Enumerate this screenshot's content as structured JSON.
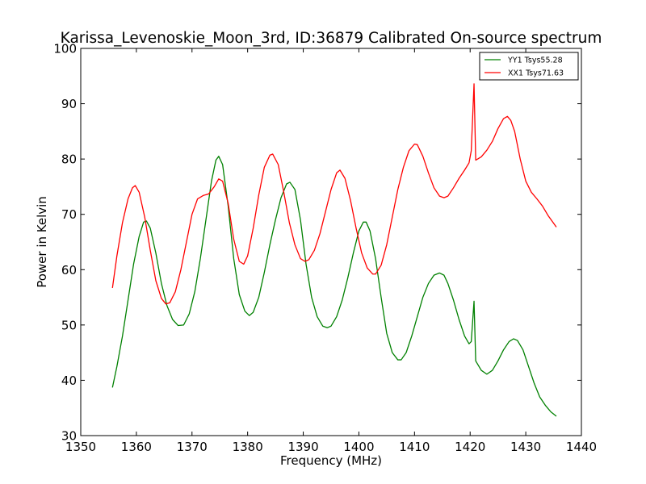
{
  "chart_data": {
    "type": "line",
    "title": "Karissa_Levenoskie_Moon_3rd, ID:36879 Calibrated On-source spectrum",
    "xlabel": "Frequency (MHz)",
    "ylabel": "Power in Kelvin",
    "xlim": [
      1350,
      1440
    ],
    "ylim": [
      30,
      100
    ],
    "x_ticks": [
      1350,
      1360,
      1370,
      1380,
      1390,
      1400,
      1410,
      1420,
      1430,
      1440
    ],
    "y_ticks": [
      30,
      40,
      50,
      60,
      70,
      80,
      90,
      100
    ],
    "grid": false,
    "legend_position": "top-right",
    "series": [
      {
        "name": "YY1 Tsys55.28",
        "color": "#008000",
        "points": [
          [
            1355.7,
            38.7
          ],
          [
            1356.5,
            42.5
          ],
          [
            1357.5,
            48.0
          ],
          [
            1358.5,
            54.5
          ],
          [
            1359.5,
            61.0
          ],
          [
            1360.5,
            66.0
          ],
          [
            1361.3,
            68.6
          ],
          [
            1361.8,
            68.8
          ],
          [
            1362.5,
            67.5
          ],
          [
            1363.5,
            63.0
          ],
          [
            1364.5,
            57.5
          ],
          [
            1365.5,
            53.5
          ],
          [
            1366.5,
            51.0
          ],
          [
            1367.5,
            49.9
          ],
          [
            1368.5,
            50.0
          ],
          [
            1369.5,
            52.0
          ],
          [
            1370.5,
            56.0
          ],
          [
            1371.5,
            62.0
          ],
          [
            1372.5,
            69.0
          ],
          [
            1373.5,
            76.0
          ],
          [
            1374.3,
            79.8
          ],
          [
            1374.8,
            80.5
          ],
          [
            1375.5,
            79.0
          ],
          [
            1376.5,
            71.5
          ],
          [
            1377.5,
            62.0
          ],
          [
            1378.5,
            55.5
          ],
          [
            1379.5,
            52.5
          ],
          [
            1380.3,
            51.7
          ],
          [
            1381.0,
            52.3
          ],
          [
            1382.0,
            55.0
          ],
          [
            1383.0,
            59.5
          ],
          [
            1384.0,
            64.5
          ],
          [
            1385.0,
            69.0
          ],
          [
            1386.0,
            73.0
          ],
          [
            1387.0,
            75.5
          ],
          [
            1387.6,
            75.8
          ],
          [
            1388.5,
            74.5
          ],
          [
            1389.5,
            69.0
          ],
          [
            1390.5,
            61.0
          ],
          [
            1391.5,
            55.0
          ],
          [
            1392.5,
            51.5
          ],
          [
            1393.5,
            49.8
          ],
          [
            1394.3,
            49.5
          ],
          [
            1395.0,
            49.8
          ],
          [
            1396.0,
            51.5
          ],
          [
            1397.0,
            54.5
          ],
          [
            1398.0,
            58.5
          ],
          [
            1399.0,
            63.0
          ],
          [
            1400.0,
            67.0
          ],
          [
            1400.8,
            68.6
          ],
          [
            1401.3,
            68.6
          ],
          [
            1402.0,
            67.0
          ],
          [
            1403.0,
            62.0
          ],
          [
            1404.0,
            55.0
          ],
          [
            1405.0,
            48.5
          ],
          [
            1406.0,
            45.0
          ],
          [
            1407.0,
            43.7
          ],
          [
            1407.6,
            43.7
          ],
          [
            1408.5,
            45.0
          ],
          [
            1409.5,
            48.0
          ],
          [
            1410.5,
            51.5
          ],
          [
            1411.5,
            55.0
          ],
          [
            1412.5,
            57.5
          ],
          [
            1413.5,
            59.0
          ],
          [
            1414.5,
            59.4
          ],
          [
            1415.3,
            59.0
          ],
          [
            1416.0,
            57.5
          ],
          [
            1417.0,
            54.5
          ],
          [
            1418.0,
            51.0
          ],
          [
            1419.0,
            48.0
          ],
          [
            1419.8,
            46.6
          ],
          [
            1420.2,
            47.0
          ],
          [
            1420.7,
            54.3
          ],
          [
            1421.0,
            43.5
          ],
          [
            1422.0,
            41.8
          ],
          [
            1423.0,
            41.1
          ],
          [
            1424.0,
            41.8
          ],
          [
            1425.0,
            43.5
          ],
          [
            1426.0,
            45.5
          ],
          [
            1427.0,
            47.0
          ],
          [
            1427.8,
            47.5
          ],
          [
            1428.5,
            47.2
          ],
          [
            1429.5,
            45.5
          ],
          [
            1430.5,
            42.5
          ],
          [
            1431.5,
            39.5
          ],
          [
            1432.5,
            37.0
          ],
          [
            1433.5,
            35.5
          ],
          [
            1434.5,
            34.3
          ],
          [
            1435.5,
            33.5
          ]
        ]
      },
      {
        "name": "XX1 Tsys71.63",
        "color": "#ff0000",
        "points": [
          [
            1355.7,
            56.7
          ],
          [
            1356.5,
            62.5
          ],
          [
            1357.5,
            68.5
          ],
          [
            1358.5,
            72.8
          ],
          [
            1359.3,
            74.8
          ],
          [
            1359.8,
            75.2
          ],
          [
            1360.5,
            74.0
          ],
          [
            1361.5,
            69.5
          ],
          [
            1362.5,
            63.5
          ],
          [
            1363.5,
            58.0
          ],
          [
            1364.5,
            54.8
          ],
          [
            1365.3,
            53.8
          ],
          [
            1366.0,
            54.0
          ],
          [
            1367.0,
            56.0
          ],
          [
            1368.0,
            60.0
          ],
          [
            1369.0,
            65.0
          ],
          [
            1370.0,
            70.0
          ],
          [
            1371.0,
            72.8
          ],
          [
            1372.0,
            73.4
          ],
          [
            1373.0,
            73.7
          ],
          [
            1374.0,
            75.0
          ],
          [
            1374.8,
            76.4
          ],
          [
            1375.5,
            76.0
          ],
          [
            1376.5,
            72.0
          ],
          [
            1377.5,
            65.5
          ],
          [
            1378.5,
            61.5
          ],
          [
            1379.3,
            61.0
          ],
          [
            1380.0,
            62.5
          ],
          [
            1381.0,
            67.5
          ],
          [
            1382.0,
            73.5
          ],
          [
            1383.0,
            78.5
          ],
          [
            1384.0,
            80.7
          ],
          [
            1384.5,
            80.9
          ],
          [
            1385.5,
            79.0
          ],
          [
            1386.5,
            74.0
          ],
          [
            1387.5,
            68.5
          ],
          [
            1388.5,
            64.5
          ],
          [
            1389.5,
            62.0
          ],
          [
            1390.3,
            61.5
          ],
          [
            1391.0,
            61.8
          ],
          [
            1392.0,
            63.5
          ],
          [
            1393.0,
            66.5
          ],
          [
            1394.0,
            70.5
          ],
          [
            1395.0,
            74.5
          ],
          [
            1396.0,
            77.5
          ],
          [
            1396.6,
            78.0
          ],
          [
            1397.5,
            76.5
          ],
          [
            1398.5,
            72.5
          ],
          [
            1399.5,
            67.5
          ],
          [
            1400.5,
            63.0
          ],
          [
            1401.5,
            60.3
          ],
          [
            1402.5,
            59.2
          ],
          [
            1403.0,
            59.2
          ],
          [
            1404.0,
            60.8
          ],
          [
            1405.0,
            64.5
          ],
          [
            1406.0,
            69.5
          ],
          [
            1407.0,
            74.5
          ],
          [
            1408.0,
            78.5
          ],
          [
            1409.0,
            81.5
          ],
          [
            1410.0,
            82.7
          ],
          [
            1410.5,
            82.6
          ],
          [
            1411.5,
            80.5
          ],
          [
            1412.5,
            77.5
          ],
          [
            1413.5,
            74.8
          ],
          [
            1414.5,
            73.3
          ],
          [
            1415.3,
            73.0
          ],
          [
            1416.0,
            73.3
          ],
          [
            1417.0,
            74.8
          ],
          [
            1418.0,
            76.5
          ],
          [
            1419.0,
            78.0
          ],
          [
            1419.8,
            79.3
          ],
          [
            1420.2,
            81.5
          ],
          [
            1420.7,
            93.6
          ],
          [
            1421.0,
            79.8
          ],
          [
            1422.0,
            80.4
          ],
          [
            1423.0,
            81.6
          ],
          [
            1424.0,
            83.2
          ],
          [
            1425.0,
            85.5
          ],
          [
            1426.0,
            87.3
          ],
          [
            1426.7,
            87.7
          ],
          [
            1427.3,
            87.0
          ],
          [
            1428.0,
            85.0
          ],
          [
            1429.0,
            80.0
          ],
          [
            1430.0,
            76.0
          ],
          [
            1431.0,
            74.0
          ],
          [
            1432.0,
            72.8
          ],
          [
            1433.0,
            71.5
          ],
          [
            1434.0,
            69.8
          ],
          [
            1435.5,
            67.7
          ]
        ]
      }
    ]
  }
}
